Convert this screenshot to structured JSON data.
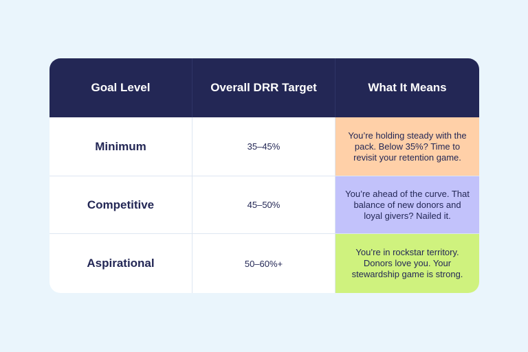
{
  "colors": {
    "background": "#eaf5fc",
    "header": "#232755",
    "minimum": "#ffd0a8",
    "competitive": "#c2c2fb",
    "aspirational": "#cff27e"
  },
  "table": {
    "headers": [
      "Goal Level",
      "Overall DRR Target",
      "What It Means"
    ],
    "rows": [
      {
        "goal": "Minimum",
        "target": "35–45%",
        "meaning": "You’re holding steady with the pack. Below 35%? Time to revisit your retention game."
      },
      {
        "goal": "Competitive",
        "target": "45–50%",
        "meaning": "You’re ahead of the curve. That balance of new donors and loyal givers? Nailed it."
      },
      {
        "goal": "Aspirational",
        "target": "50–60%+",
        "meaning": "You’re in rockstar territory. Donors love you. Your stewardship game is strong."
      }
    ]
  }
}
